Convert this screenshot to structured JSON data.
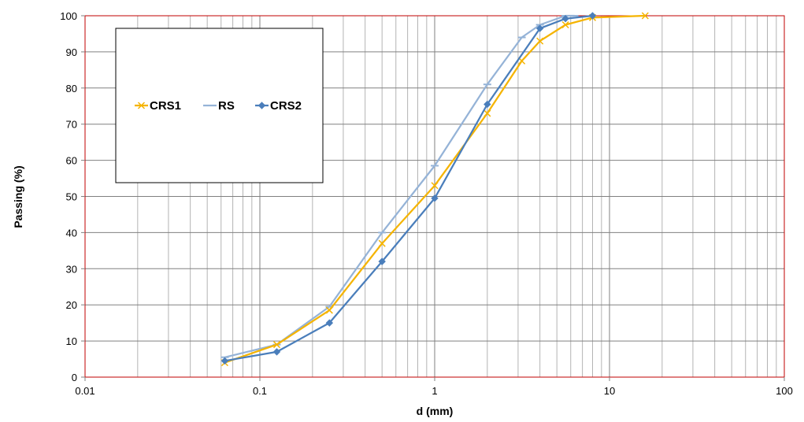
{
  "chart_data": {
    "type": "line",
    "xlabel": "d (mm)",
    "ylabel": "Passing (%)",
    "x_scale": "log",
    "xlim": [
      0.01,
      100
    ],
    "ylim": [
      0,
      100
    ],
    "x_tick_labels": [
      "0.01",
      "0.1",
      "1",
      "10",
      "100"
    ],
    "x_tick_values": [
      0.01,
      0.1,
      1,
      10,
      100
    ],
    "y_tick_labels": [
      "0",
      "10",
      "20",
      "30",
      "40",
      "50",
      "60",
      "70",
      "80",
      "90",
      "100"
    ],
    "y_tick_values": [
      0,
      10,
      20,
      30,
      40,
      50,
      60,
      70,
      80,
      90,
      100
    ],
    "grid": true,
    "legend_position": "top-left",
    "series": [
      {
        "name": "CRS1",
        "color": "#F5B400",
        "marker": "x",
        "x": [
          0.063,
          0.125,
          0.25,
          0.5,
          1,
          2,
          3.15,
          4,
          5.6,
          8,
          16
        ],
        "y": [
          4,
          9,
          18.5,
          37,
          53,
          73,
          87.5,
          93,
          97.5,
          99.5,
          100
        ]
      },
      {
        "name": "RS",
        "color": "#95B3D7",
        "marker": "dash",
        "x": [
          0.063,
          0.125,
          0.25,
          0.5,
          1,
          2,
          3.15,
          4,
          5.6,
          6.3
        ],
        "y": [
          5.5,
          9,
          19.5,
          40,
          58.5,
          81,
          94,
          97.5,
          100,
          100
        ]
      },
      {
        "name": "CRS2",
        "color": "#4A7EBB",
        "marker": "diamond",
        "x": [
          0.063,
          0.125,
          0.25,
          0.5,
          1,
          2,
          4,
          5.6,
          8
        ],
        "y": [
          4.5,
          7,
          15,
          32,
          49.5,
          75.5,
          96.5,
          99.2,
          100
        ]
      }
    ]
  }
}
